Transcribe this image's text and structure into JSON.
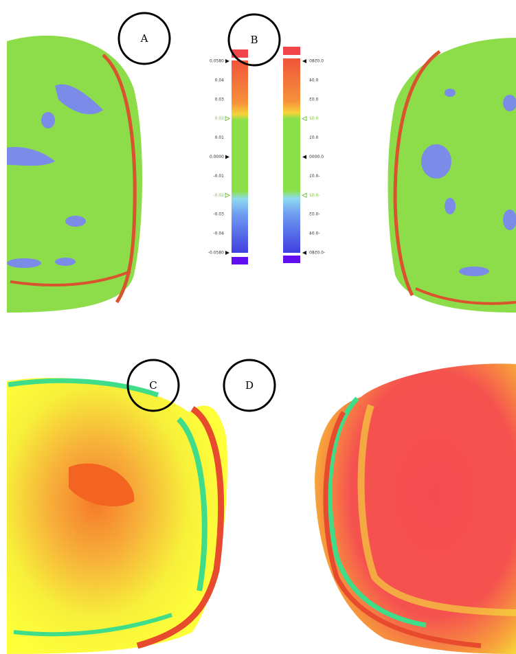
{
  "panels": [
    {
      "label": "A"
    },
    {
      "label": "B"
    },
    {
      "label": "C"
    },
    {
      "label": "D"
    }
  ],
  "scales": [
    {
      "labels": [
        "0.0580",
        "0.04",
        "0.03",
        "0.02",
        "0.01",
        "0.0000",
        "-0.01",
        "-0.02",
        "-0.03",
        "-0.04",
        "-0.0580"
      ]
    },
    {
      "labels": [
        "0.0580",
        "0.04",
        "0.03",
        "0.02",
        "0.01",
        "0.0000",
        "-0.01",
        "-0.02",
        "-0.03",
        "-0.04",
        "-0.0580"
      ]
    }
  ]
}
